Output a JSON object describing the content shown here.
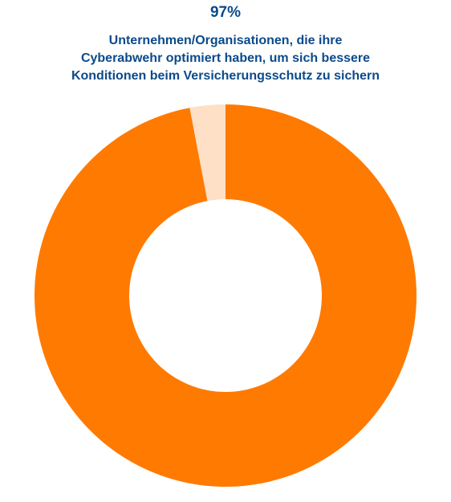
{
  "chart_data": {
    "type": "pie",
    "variant": "donut",
    "headline": "97%",
    "title_lines": [
      "Unternehmen/Organisationen, die ihre",
      "Cyberabwehr optimiert haben, um sich bessere",
      "Konditionen beim Versicherungsschutz zu sichern"
    ],
    "slices": [
      {
        "value": 97,
        "color": "#ff7a00"
      },
      {
        "value": 3,
        "color": "#fde0c5"
      }
    ],
    "start": "top",
    "direction": "clockwise",
    "legend": "none"
  }
}
